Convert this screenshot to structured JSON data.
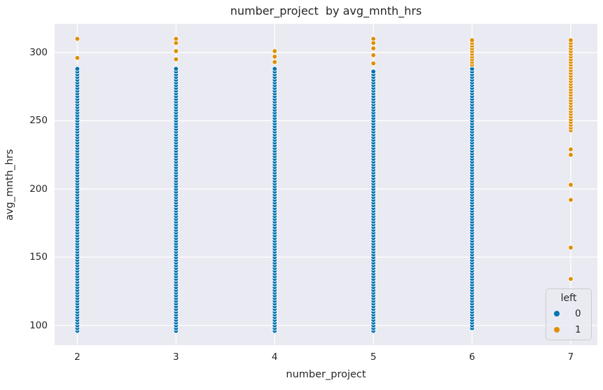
{
  "chart_data": {
    "type": "scatter",
    "title": "number_project  by avg_mnth_hrs",
    "xlabel": "number_project",
    "ylabel": "avg_mnth_hrs",
    "xlim": [
      1.77,
      7.27
    ],
    "ylim": [
      85.5,
      321
    ],
    "xticks": [
      2,
      3,
      4,
      5,
      6,
      7
    ],
    "yticks": [
      100,
      150,
      200,
      250,
      300
    ],
    "grid": true,
    "legend_position": "lower right",
    "colors": {
      "plot_background": "#eaeaf2",
      "gridline": "#ffffff",
      "text": "#262626",
      "marker_edge": "#ffffff",
      "hue_0": "#0173b2",
      "hue_1": "#de8f05"
    },
    "marker": {
      "radius": 3.4,
      "edge_width": 0.9,
      "strip_step": 2
    },
    "legend": {
      "title": "left",
      "entries": [
        {
          "label": "0",
          "color": "#0173b2"
        },
        {
          "label": "1",
          "color": "#de8f05"
        }
      ]
    },
    "series": [
      {
        "name": "0",
        "color": "#0173b2",
        "columns": [
          {
            "x": 2,
            "strips": [
              [
                96,
                288
              ]
            ],
            "points": []
          },
          {
            "x": 3,
            "strips": [
              [
                96,
                288
              ]
            ],
            "points": []
          },
          {
            "x": 4,
            "strips": [
              [
                96,
                288
              ]
            ],
            "points": []
          },
          {
            "x": 5,
            "strips": [
              [
                96,
                287
              ]
            ],
            "points": []
          },
          {
            "x": 6,
            "strips": [
              [
                98,
                289
              ]
            ],
            "points": []
          }
        ]
      },
      {
        "name": "1",
        "color": "#de8f05",
        "columns": [
          {
            "x": 2,
            "strips": [],
            "points": [
              296,
              310
            ]
          },
          {
            "x": 3,
            "strips": [],
            "points": [
              295,
              301,
              307,
              310
            ]
          },
          {
            "x": 4,
            "strips": [],
            "points": [
              293,
              297,
              301
            ]
          },
          {
            "x": 5,
            "strips": [],
            "points": [
              292,
              298,
              303,
              307,
              310
            ]
          },
          {
            "x": 6,
            "strips": [
              [
                291,
                310
              ]
            ],
            "points": []
          },
          {
            "x": 7,
            "strips": [
              [
                243,
                310
              ]
            ],
            "points": [
              134,
              157,
              192,
              203,
              225,
              229
            ]
          }
        ]
      }
    ]
  }
}
